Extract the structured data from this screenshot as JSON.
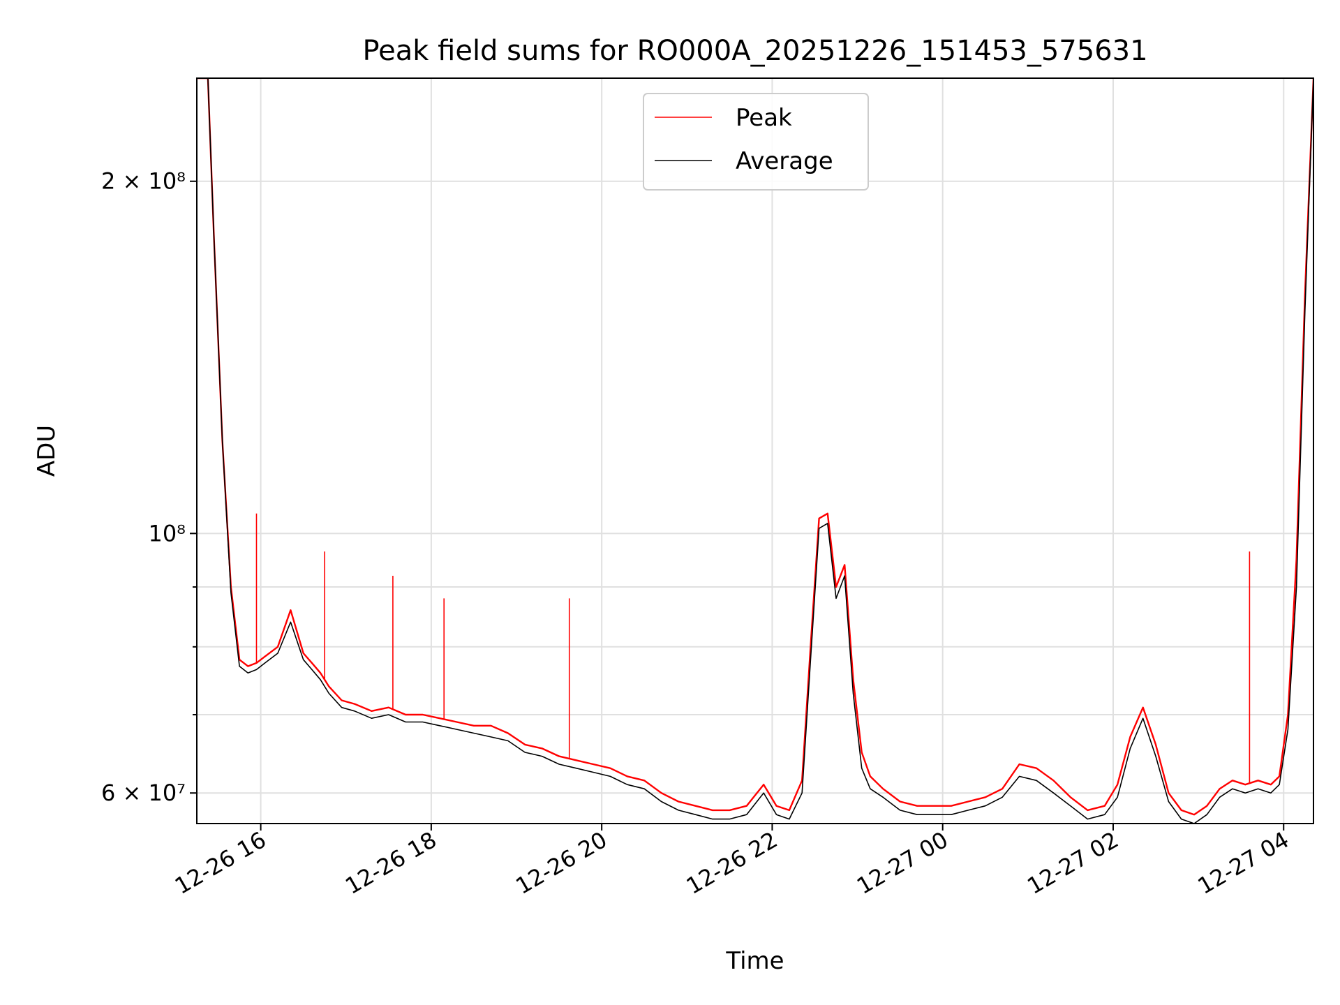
{
  "chart_data": {
    "type": "line",
    "title": "Peak field sums for RO000A_20251226_151453_575631",
    "xlabel": "Time",
    "ylabel": "ADU",
    "yscale": "log",
    "x_unit": "hours since 12-26 15:00",
    "xlim": [
      0.25,
      13.35
    ],
    "ylim": [
      56500000,
      245000000
    ],
    "x_ticks": [
      {
        "value": 1,
        "label": "12-26 16"
      },
      {
        "value": 3,
        "label": "12-26 18"
      },
      {
        "value": 5,
        "label": "12-26 20"
      },
      {
        "value": 7,
        "label": "12-26 22"
      },
      {
        "value": 9,
        "label": "12-27 00"
      },
      {
        "value": 11,
        "label": "12-27 02"
      },
      {
        "value": 13,
        "label": "12-27 04"
      }
    ],
    "y_major_ticks": [
      {
        "value": 60000000,
        "label": "6 × 10⁷"
      },
      {
        "value": 100000000,
        "label": "10⁸"
      },
      {
        "value": 200000000,
        "label": "2 × 10⁸"
      }
    ],
    "y_minor_ticks": [
      70000000,
      80000000,
      90000000
    ],
    "grid": true,
    "legend": {
      "position": "top-center"
    },
    "series": [
      {
        "name": "Peak",
        "color": "#ff0000",
        "x": [
          0.25,
          0.38,
          0.45,
          0.55,
          0.65,
          0.75,
          0.85,
          0.95,
          1.05,
          1.2,
          1.35,
          1.5,
          1.6,
          1.7,
          1.8,
          1.95,
          2.1,
          2.3,
          2.5,
          2.7,
          2.9,
          3.1,
          3.3,
          3.5,
          3.7,
          3.9,
          4.1,
          4.3,
          4.5,
          4.7,
          4.9,
          5.1,
          5.3,
          5.5,
          5.7,
          5.9,
          6.1,
          6.3,
          6.5,
          6.7,
          6.9,
          7.05,
          7.2,
          7.35,
          7.45,
          7.55,
          7.65,
          7.75,
          7.85,
          7.95,
          8.05,
          8.15,
          8.3,
          8.5,
          8.7,
          8.9,
          9.1,
          9.3,
          9.5,
          9.7,
          9.9,
          10.1,
          10.3,
          10.5,
          10.7,
          10.9,
          11.05,
          11.2,
          11.35,
          11.5,
          11.65,
          11.8,
          11.95,
          12.1,
          12.25,
          12.4,
          12.55,
          12.7,
          12.85,
          12.95,
          13.05,
          13.15,
          13.25,
          13.35
        ],
        "y": [
          245000000,
          245000000,
          180000000,
          120000000,
          90000000,
          78000000,
          77000000,
          77500000,
          78500000,
          80000000,
          86000000,
          79000000,
          77500000,
          76000000,
          74000000,
          72000000,
          71500000,
          70500000,
          71000000,
          70000000,
          70000000,
          69500000,
          69000000,
          68500000,
          68500000,
          67500000,
          66000000,
          65500000,
          64500000,
          64000000,
          63500000,
          63000000,
          62000000,
          61500000,
          60000000,
          59000000,
          58500000,
          58000000,
          58000000,
          58500000,
          61000000,
          58500000,
          58000000,
          61500000,
          80000000,
          103000000,
          104000000,
          90000000,
          94000000,
          75000000,
          65000000,
          62000000,
          60500000,
          59000000,
          58500000,
          58500000,
          58500000,
          59000000,
          59500000,
          60500000,
          63500000,
          63000000,
          61500000,
          59500000,
          58000000,
          58500000,
          61000000,
          67000000,
          71000000,
          66000000,
          60000000,
          58000000,
          57500000,
          58500000,
          60500000,
          61500000,
          61000000,
          61500000,
          61000000,
          62000000,
          70000000,
          95000000,
          160000000,
          245000000
        ]
      },
      {
        "name": "Average",
        "color": "#000000",
        "x": [
          0.25,
          0.38,
          0.45,
          0.55,
          0.65,
          0.75,
          0.85,
          0.95,
          1.05,
          1.2,
          1.35,
          1.5,
          1.6,
          1.7,
          1.8,
          1.95,
          2.1,
          2.3,
          2.5,
          2.7,
          2.9,
          3.1,
          3.3,
          3.5,
          3.7,
          3.9,
          4.1,
          4.3,
          4.5,
          4.7,
          4.9,
          5.1,
          5.3,
          5.5,
          5.7,
          5.9,
          6.1,
          6.3,
          6.5,
          6.7,
          6.9,
          7.05,
          7.2,
          7.35,
          7.45,
          7.55,
          7.65,
          7.75,
          7.85,
          7.95,
          8.05,
          8.15,
          8.3,
          8.5,
          8.7,
          8.9,
          9.1,
          9.3,
          9.5,
          9.7,
          9.9,
          10.1,
          10.3,
          10.5,
          10.7,
          10.9,
          11.05,
          11.2,
          11.35,
          11.5,
          11.65,
          11.8,
          11.95,
          12.1,
          12.25,
          12.4,
          12.55,
          12.7,
          12.85,
          12.95,
          13.05,
          13.15,
          13.25,
          13.35
        ],
        "y": [
          245000000,
          245000000,
          180000000,
          120000000,
          89000000,
          77000000,
          76000000,
          76500000,
          77500000,
          79000000,
          84000000,
          78000000,
          76500000,
          75000000,
          73000000,
          71000000,
          70500000,
          69500000,
          70000000,
          69000000,
          69000000,
          68500000,
          68000000,
          67500000,
          67000000,
          66500000,
          65000000,
          64500000,
          63500000,
          63000000,
          62500000,
          62000000,
          61000000,
          60500000,
          59000000,
          58000000,
          57500000,
          57000000,
          57000000,
          57500000,
          60000000,
          57500000,
          57000000,
          60000000,
          78000000,
          101000000,
          102000000,
          88000000,
          92000000,
          73000000,
          63000000,
          60500000,
          59500000,
          58000000,
          57500000,
          57500000,
          57500000,
          58000000,
          58500000,
          59500000,
          62000000,
          61500000,
          60000000,
          58500000,
          57000000,
          57500000,
          59500000,
          65500000,
          69500000,
          64500000,
          59000000,
          57000000,
          56500000,
          57500000,
          59500000,
          60500000,
          60000000,
          60500000,
          60000000,
          61000000,
          68000000,
          90000000,
          155000000,
          245000000
        ]
      }
    ],
    "spikes": [
      {
        "series": "Peak",
        "x": 0.95,
        "y": 104000000
      },
      {
        "series": "Peak",
        "x": 1.75,
        "y": 96500000
      },
      {
        "series": "Peak",
        "x": 2.55,
        "y": 92000000
      },
      {
        "series": "Peak",
        "x": 3.15,
        "y": 88000000
      },
      {
        "series": "Peak",
        "x": 4.62,
        "y": 88000000
      },
      {
        "series": "Peak",
        "x": 12.6,
        "y": 96500000
      }
    ]
  }
}
